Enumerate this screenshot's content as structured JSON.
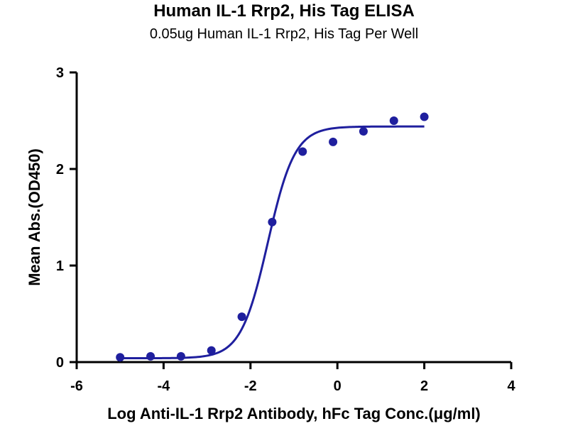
{
  "chart_data": {
    "type": "scatter",
    "title": "Human IL-1 Rrp2, His Tag ELISA",
    "subtitle": "0.05ug Human IL-1 Rrp2, His Tag Per Well",
    "xlabel": "Log Anti-IL-1 Rrp2 Antibody, hFc Tag Conc.(μg/ml)",
    "ylabel": "Mean Abs.(OD450)",
    "xlim": [
      -6,
      4
    ],
    "ylim": [
      0,
      3
    ],
    "xticks": [
      "-6",
      "-4",
      "-2",
      "0",
      "2",
      "4"
    ],
    "yticks": [
      "0",
      "1",
      "2",
      "3"
    ],
    "grid": false,
    "series": [
      {
        "x": [
          -5.0,
          -4.3,
          -3.6,
          -2.9,
          -2.2,
          -1.5,
          -0.8,
          -0.1,
          0.6,
          1.3,
          2.0
        ],
        "y": [
          0.05,
          0.06,
          0.06,
          0.12,
          0.47,
          1.45,
          2.18,
          2.28,
          2.39,
          2.5,
          2.54
        ],
        "fit": {
          "model": "4PL",
          "bottom": 0.04,
          "top": 2.44,
          "logEC50": -1.6,
          "hillslope": 1.4,
          "xrange": [
            -5.0,
            2.0
          ]
        }
      }
    ],
    "colors": {
      "series": "#1f1f9e",
      "axis": "#000000"
    }
  }
}
